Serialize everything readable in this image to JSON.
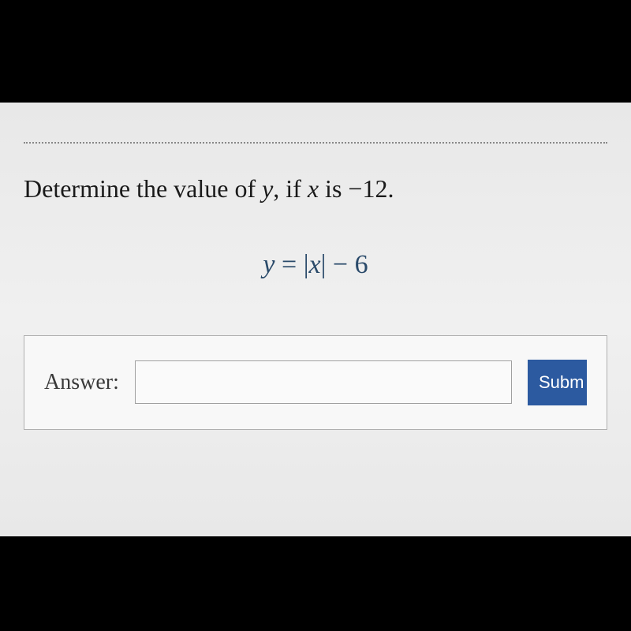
{
  "question": {
    "prompt_prefix": "Determine the value of ",
    "var_y": "y",
    "prompt_mid": ", if ",
    "var_x": "x",
    "prompt_suffix": " is −12.",
    "equation_lhs": "y",
    "equation_eq": " = ",
    "equation_rhs": "|x| − 6"
  },
  "answer": {
    "label": "Answer:",
    "value": "",
    "placeholder": ""
  },
  "submit": {
    "label": "Subm"
  },
  "colors": {
    "background_black": "#000000",
    "content_bg": "#ececec",
    "text_dark": "#1a1a1a",
    "equation_color": "#2a4a6a",
    "button_bg": "#2c5aa0",
    "button_text": "#ffffff",
    "border_gray": "#a0a0a0"
  }
}
